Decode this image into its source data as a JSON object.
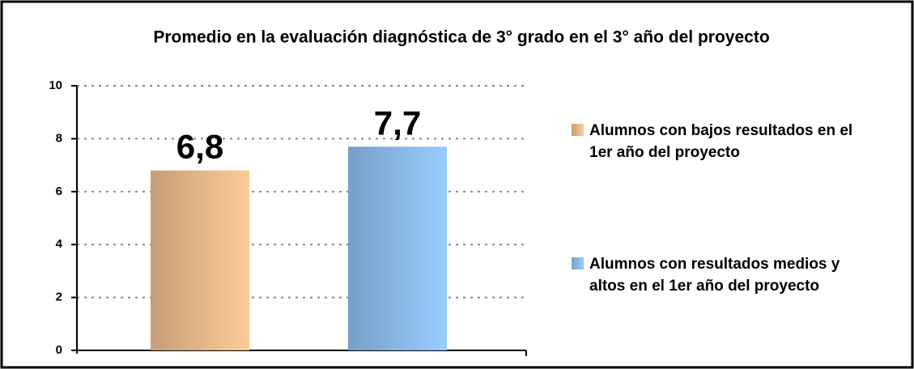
{
  "chart_data": {
    "type": "bar",
    "title": "Promedio en la evaluación diagnóstica de 3° grado en el 3° año del proyecto",
    "categories": [
      null
    ],
    "series": [
      {
        "name": "Alumnos con bajos resultados en el 1er año del proyecto",
        "color": "#fdcb98",
        "values": [
          6.8
        ],
        "value_labels": [
          "6,8"
        ]
      },
      {
        "name": "Alumnos con resultados medios y altos en el 1er año del proyecto",
        "color": "#99ccff",
        "values": [
          7.7
        ],
        "value_labels": [
          "7,7"
        ]
      }
    ],
    "ylim": [
      0,
      10
    ],
    "yticks": [
      0,
      2,
      4,
      6,
      8,
      10
    ],
    "grid": true,
    "legend": "right"
  }
}
